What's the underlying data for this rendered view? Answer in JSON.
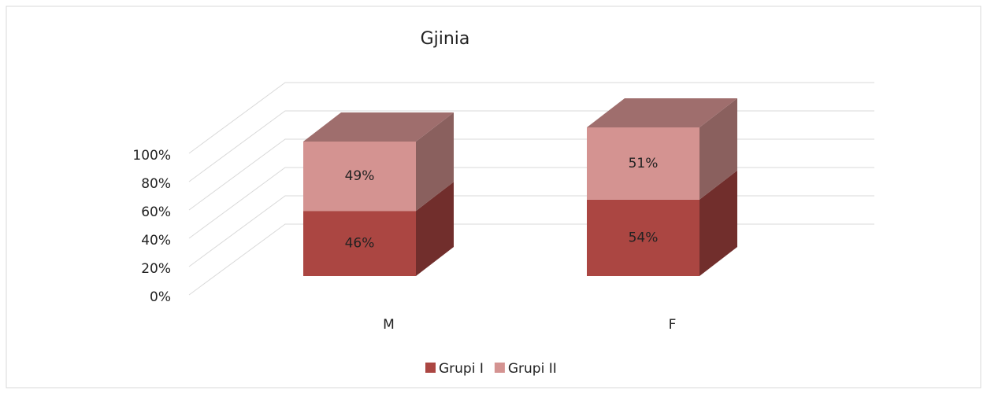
{
  "chart_data": {
    "type": "bar3d_stacked",
    "title": "Gjinia",
    "categories": [
      "M",
      "F"
    ],
    "series": [
      {
        "name": "Grupi I",
        "color": "#ab4642",
        "values": [
          46,
          54
        ],
        "value_labels": [
          "46%",
          "54%"
        ]
      },
      {
        "name": "Grupi II",
        "color": "#d49391",
        "values": [
          49,
          51
        ],
        "value_labels": [
          "49%",
          "51%"
        ]
      }
    ],
    "ylim": [
      0,
      100
    ],
    "yticks": [
      {
        "value": 0,
        "label": "0%"
      },
      {
        "value": 20,
        "label": "20%"
      },
      {
        "value": 40,
        "label": "40%"
      },
      {
        "value": 60,
        "label": "60%"
      },
      {
        "value": 80,
        "label": "80%"
      },
      {
        "value": 100,
        "label": "100%"
      }
    ],
    "grid": true,
    "legend": "bottom"
  }
}
